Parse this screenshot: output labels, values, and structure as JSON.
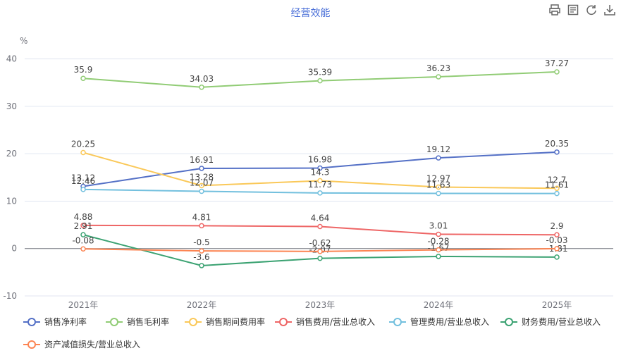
{
  "chart_data": {
    "type": "line",
    "title": "经营效能",
    "ylabel": "%",
    "ylim": [
      -10,
      45
    ],
    "yticks": [
      -10,
      0,
      10,
      20,
      30,
      40
    ],
    "categories": [
      "2021年",
      "2022年",
      "2023年",
      "2024年",
      "2025年"
    ],
    "grid": true,
    "legend_position": "bottom-left",
    "series": [
      {
        "name": "销售净利率",
        "color": "#5470c6",
        "values": [
          13.12,
          16.91,
          16.98,
          19.12,
          20.35
        ]
      },
      {
        "name": "销售毛利率",
        "color": "#91cc75",
        "values": [
          35.9,
          34.03,
          35.39,
          36.23,
          37.27
        ]
      },
      {
        "name": "销售期间费用率",
        "color": "#fac858",
        "values": [
          20.25,
          13.28,
          14.3,
          12.97,
          12.7
        ]
      },
      {
        "name": "销售费用/营业总收入",
        "color": "#ee6666",
        "values": [
          4.88,
          4.81,
          4.64,
          3.01,
          2.9
        ]
      },
      {
        "name": "管理费用/营业总收入",
        "color": "#73c0de",
        "values": [
          12.46,
          12.07,
          11.73,
          11.63,
          11.61
        ]
      },
      {
        "name": "财务费用/营业总收入",
        "color": "#3ba272",
        "values": [
          2.91,
          -3.6,
          -2.07,
          -1.67,
          -1.81
        ]
      },
      {
        "name": "资产减值损失/营业总收入",
        "color": "#fc8452",
        "values": [
          -0.08,
          -0.5,
          -0.62,
          -0.28,
          -0.03
        ]
      }
    ]
  },
  "toolbox": {
    "icons": [
      "print-icon",
      "data-view-icon",
      "restore-icon",
      "download-icon"
    ]
  }
}
